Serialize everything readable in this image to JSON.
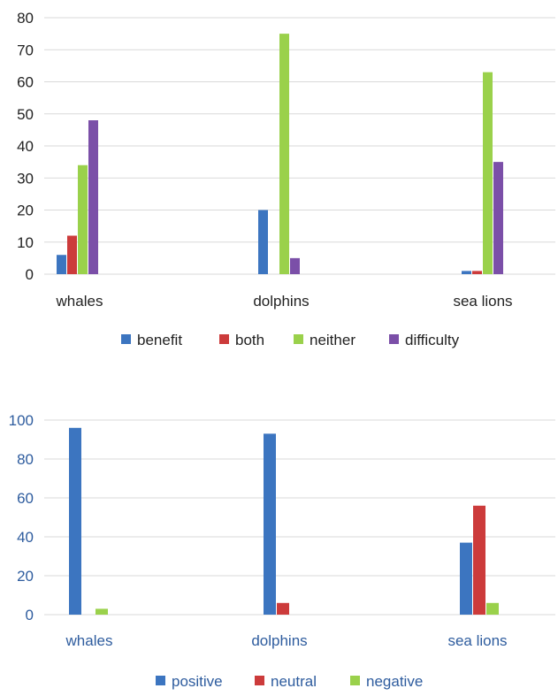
{
  "chart_data": [
    {
      "type": "bar",
      "categories": [
        "whales",
        "dolphins",
        "sea lions"
      ],
      "series": [
        {
          "name": "benefit",
          "color": "#3c75c0",
          "values": [
            6,
            20,
            1
          ]
        },
        {
          "name": "both",
          "color": "#cc3b3b",
          "values": [
            12,
            0,
            1
          ]
        },
        {
          "name": "neither",
          "color": "#9ad14b",
          "values": [
            34,
            75,
            63
          ]
        },
        {
          "name": "difficulty",
          "color": "#7b4fa8",
          "values": [
            48,
            5,
            35
          ]
        }
      ],
      "yticks": [
        "0",
        "10",
        "20",
        "30",
        "40",
        "50",
        "60",
        "70",
        "80"
      ],
      "ylim": [
        0,
        80
      ],
      "grid": true,
      "legend": "bottom",
      "text_color": "#222222"
    },
    {
      "type": "bar",
      "categories": [
        "whales",
        "dolphins",
        "sea lions"
      ],
      "series": [
        {
          "name": "positive",
          "color": "#3c75c0",
          "values": [
            96,
            93,
            37
          ]
        },
        {
          "name": "neutral",
          "color": "#cc3b3b",
          "values": [
            0,
            6,
            56
          ]
        },
        {
          "name": "negative",
          "color": "#9ad14b",
          "values": [
            3,
            0,
            6
          ]
        }
      ],
      "yticks": [
        "0",
        "20",
        "40",
        "60",
        "80",
        "100"
      ],
      "ylim": [
        0,
        100
      ],
      "grid": true,
      "legend": "bottom",
      "text_color": "#2e5c9e"
    }
  ]
}
